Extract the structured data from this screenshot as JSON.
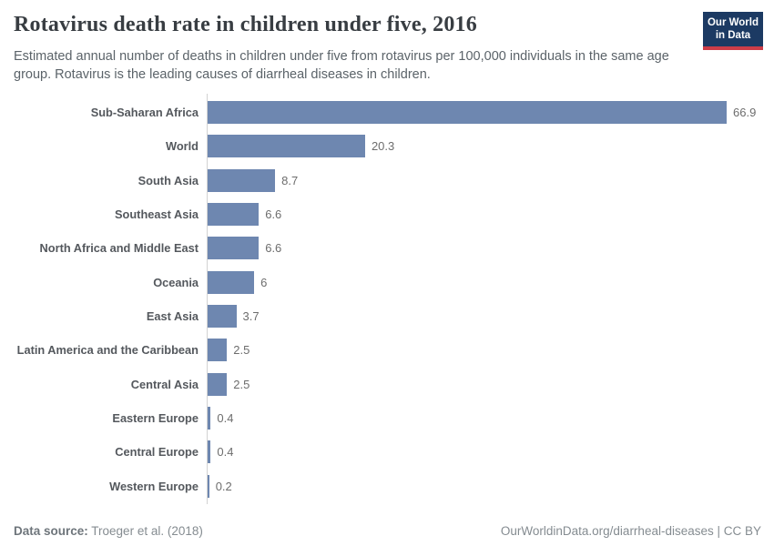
{
  "header": {
    "title": "Rotavirus death rate in children under five, 2016",
    "subtitle": "Estimated annual number of deaths in children under five from rotavirus per 100,000 individuals in the same age group. Rotavirus is the leading causes of diarrheal diseases in children.",
    "logo": {
      "line1": "Our World",
      "line2": "in Data"
    }
  },
  "chart_data": {
    "type": "bar",
    "orientation": "horizontal",
    "title": "Rotavirus death rate in children under five, 2016",
    "xlabel": "",
    "ylabel": "",
    "categories": [
      "Sub-Saharan Africa",
      "World",
      "South Asia",
      "Southeast Asia",
      "North Africa and Middle East",
      "Oceania",
      "East Asia",
      "Latin America and the Caribbean",
      "Central Asia",
      "Eastern Europe",
      "Central Europe",
      "Western Europe"
    ],
    "values": [
      66.9,
      20.3,
      8.7,
      6.6,
      6.6,
      6,
      3.7,
      2.5,
      2.5,
      0.4,
      0.4,
      0.2
    ],
    "value_labels": [
      "66.9",
      "20.3",
      "8.7",
      "6.6",
      "6.6",
      "6",
      "3.7",
      "2.5",
      "2.5",
      "0.4",
      "0.4",
      "0.2"
    ],
    "xlim": [
      0,
      66.9
    ],
    "grid": false,
    "legend": false,
    "bar_color": "#6e87b0",
    "axis_color": "#d2d2d2"
  },
  "footer": {
    "source_label": "Data source:",
    "source_value": "Troeger et al. (2018)",
    "credit": "OurWorldinData.org/diarrheal-diseases | CC BY"
  },
  "colors": {
    "logo_bg": "#1c3a63",
    "logo_stripe": "#cd3d48",
    "title_text": "#383d42",
    "subtitle_text": "#5b6369",
    "category_label": "#54585d",
    "value_label": "#6d6d6d"
  }
}
